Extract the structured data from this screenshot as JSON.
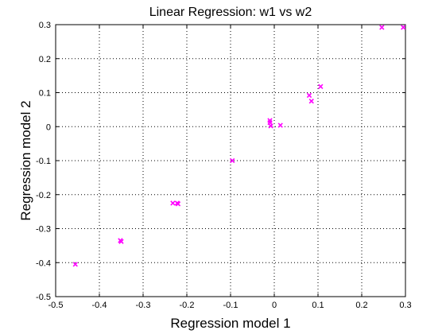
{
  "chart_data": {
    "type": "scatter",
    "title": "Linear Regression: w1 vs w2",
    "xlabel": "Regression model 1",
    "ylabel": "Regression model 2",
    "xlim": [
      -0.5,
      0.3
    ],
    "ylim": [
      -0.5,
      0.3
    ],
    "xticks": [
      -0.5,
      -0.4,
      -0.3,
      -0.2,
      -0.1,
      0,
      0.1,
      0.2,
      0.3
    ],
    "xtick_labels": [
      "-0.5",
      "-0.4",
      "-0.3",
      "-0.2",
      "-0.1",
      "0",
      "0.1",
      "0.2",
      "0.3"
    ],
    "yticks": [
      -0.5,
      -0.4,
      -0.3,
      -0.2,
      -0.1,
      0,
      0.1,
      0.2,
      0.3
    ],
    "ytick_labels": [
      "-0.5",
      "-0.4",
      "-0.3",
      "-0.2",
      "-0.1",
      "0",
      "0.1",
      "0.2",
      "0.3"
    ],
    "grid": true,
    "grid_style": "dotted",
    "marker": "x",
    "marker_color": "#ff00ff",
    "series": [
      {
        "x": [
          -0.455,
          -0.352,
          -0.35,
          -0.232,
          -0.222,
          -0.22,
          -0.096,
          -0.01,
          -0.01,
          -0.008,
          0.014,
          0.08,
          0.085,
          0.106,
          0.246,
          0.295
        ],
        "y": [
          -0.405,
          -0.335,
          -0.338,
          -0.225,
          -0.225,
          -0.227,
          -0.1,
          0.018,
          0.012,
          0.002,
          0.004,
          0.092,
          0.075,
          0.118,
          0.292,
          0.292
        ]
      }
    ]
  }
}
